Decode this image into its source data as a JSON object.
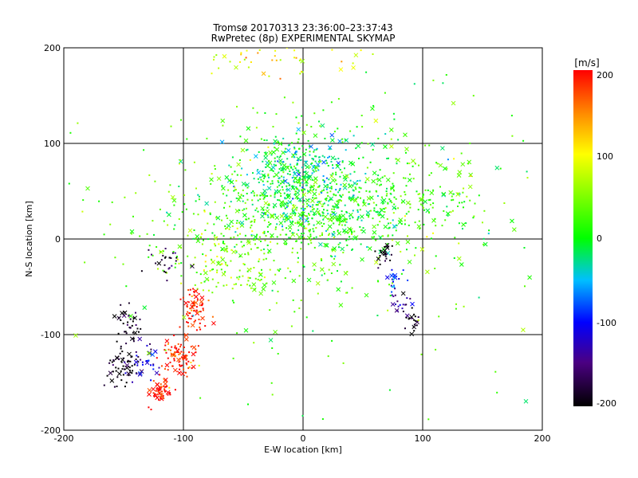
{
  "chart_data": {
    "type": "scatter",
    "title": "Tromsø 20170313 23:36:00–23:37:43",
    "subtitle": "RwPretec (8p) EXPERIMENTAL SKYMAP",
    "xlabel": "E-W location [km]",
    "ylabel": "N-S location [km]",
    "xlim": [
      -200,
      200
    ],
    "ylim": [
      -200,
      200
    ],
    "xticks": [
      "-200",
      "-100",
      "0",
      "100",
      "200"
    ],
    "yticks": [
      "-200",
      "-100",
      "0",
      "100",
      "200"
    ],
    "grid": true,
    "markers": [
      "point",
      "x"
    ],
    "colorbar": {
      "label": "[m/s]",
      "range": [
        -200,
        200
      ],
      "ticks": [
        "200",
        "100",
        "0",
        "-100",
        "-200"
      ],
      "colormap": "rainbow: black(-200) → purple → blue(-100) → cyan → green(0) → yellow(100) → orange → red(200)"
    },
    "clusters": [
      {
        "x": 0,
        "y": 75,
        "sx": 22,
        "sy": 18,
        "vel": -25,
        "n": 240
      },
      {
        "x": 10,
        "y": 35,
        "sx": 38,
        "sy": 22,
        "vel": 0,
        "n": 420
      },
      {
        "x": -40,
        "y": 20,
        "sx": 55,
        "sy": 40,
        "vel": 35,
        "n": 260
      },
      {
        "x": -60,
        "y": -25,
        "sx": 25,
        "sy": 18,
        "vel": 45,
        "n": 120
      },
      {
        "x": 40,
        "y": 70,
        "sx": 45,
        "sy": 45,
        "vel": 10,
        "n": 120
      },
      {
        "x": 40,
        "y": 25,
        "sx": 60,
        "sy": 25,
        "vel": 20,
        "n": 140
      },
      {
        "x": 120,
        "y": 40,
        "sx": 30,
        "sy": 25,
        "vel": 25,
        "n": 80
      },
      {
        "x": -20,
        "y": 190,
        "sx": 35,
        "sy": 10,
        "vel": 90,
        "n": 50
      },
      {
        "x": -90,
        "y": -70,
        "sx": 6,
        "sy": 12,
        "vel": 195,
        "n": 70
      },
      {
        "x": -105,
        "y": -125,
        "sx": 8,
        "sy": 12,
        "vel": 195,
        "n": 90
      },
      {
        "x": -120,
        "y": -160,
        "sx": 5,
        "sy": 6,
        "vel": 200,
        "n": 50
      },
      {
        "x": -150,
        "y": -135,
        "sx": 6,
        "sy": 10,
        "vel": -200,
        "n": 60
      },
      {
        "x": -145,
        "y": -90,
        "sx": 6,
        "sy": 10,
        "vel": -190,
        "n": 40
      },
      {
        "x": -115,
        "y": -25,
        "sx": 10,
        "sy": 8,
        "vel": -185,
        "n": 25
      },
      {
        "x": -130,
        "y": -130,
        "sx": 8,
        "sy": 12,
        "vel": -120,
        "n": 30
      },
      {
        "x": 68,
        "y": -15,
        "sx": 3,
        "sy": 6,
        "vel": -195,
        "n": 25
      },
      {
        "x": 77,
        "y": -45,
        "sx": 3,
        "sy": 8,
        "vel": -95,
        "n": 20
      },
      {
        "x": 82,
        "y": -65,
        "sx": 4,
        "sy": 8,
        "vel": -150,
        "n": 20
      },
      {
        "x": 92,
        "y": -85,
        "sx": 3,
        "sy": 5,
        "vel": -195,
        "n": 20
      },
      {
        "x": 0,
        "y": 0,
        "sx": 120,
        "sy": 100,
        "vel": 30,
        "n": 230
      }
    ]
  }
}
